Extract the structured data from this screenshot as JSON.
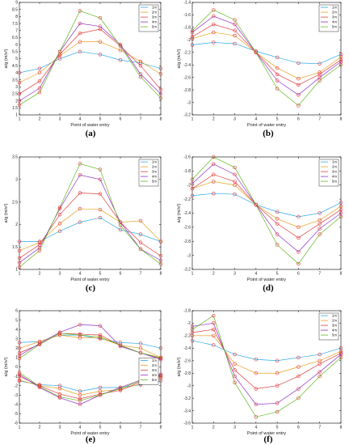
{
  "series_colors": [
    "#2ba8e6",
    "#e6a020",
    "#e04040",
    "#9030c8",
    "#60b820"
  ],
  "chart_data": [
    {
      "label": "(a)",
      "type": "line",
      "xlabel": "Point of water entry",
      "ylabel": "a/g (m/s²)",
      "x": [
        1,
        2,
        3,
        4,
        5,
        6,
        7,
        8
      ],
      "xlim": [
        1,
        8
      ],
      "ylim": [
        1,
        9
      ],
      "yticks": [
        1,
        1.5,
        2,
        2.5,
        3,
        3.5,
        4,
        4.5,
        5,
        5.5,
        6,
        6.5,
        7,
        7.5,
        8,
        8.5,
        9
      ],
      "legend": "top-right",
      "series": [
        {
          "name": "1m",
          "values": [
            4.0,
            4.3,
            5.0,
            5.5,
            5.3,
            4.9,
            4.7,
            4.3
          ]
        },
        {
          "name": "2m",
          "values": [
            3.3,
            4.0,
            5.2,
            6.2,
            6.2,
            5.6,
            4.8,
            3.9
          ]
        },
        {
          "name": "3m",
          "values": [
            2.5,
            3.4,
            5.3,
            6.8,
            7.1,
            5.9,
            4.5,
            2.8
          ]
        },
        {
          "name": "4m",
          "values": [
            2.0,
            2.9,
            5.5,
            7.5,
            7.3,
            6.0,
            3.9,
            2.5
          ]
        },
        {
          "name": "5m",
          "values": [
            1.7,
            2.6,
            5.5,
            8.4,
            7.9,
            5.9,
            3.7,
            2.2
          ]
        }
      ]
    },
    {
      "label": "(b)",
      "type": "line",
      "xlabel": "Point of water entry",
      "ylabel": "a/g (m/s²)",
      "x": [
        1,
        2,
        3,
        4,
        5,
        6,
        7,
        8
      ],
      "xlim": [
        1,
        8
      ],
      "ylim": [
        -3.2,
        -1.4
      ],
      "yticks": [
        -3.2,
        -3,
        -2.8,
        -2.6,
        -2.4,
        -2.2,
        -2,
        -1.8,
        -1.6,
        -1.4
      ],
      "legend": "top-right",
      "series": [
        {
          "name": "1m",
          "values": [
            -2.08,
            -2.04,
            -2.06,
            -2.18,
            -2.28,
            -2.37,
            -2.38,
            -2.23
          ]
        },
        {
          "name": "2m",
          "values": [
            -1.98,
            -1.88,
            -1.93,
            -2.2,
            -2.45,
            -2.62,
            -2.52,
            -2.27
          ]
        },
        {
          "name": "3m",
          "values": [
            -1.95,
            -1.75,
            -1.85,
            -2.2,
            -2.55,
            -2.72,
            -2.55,
            -2.32
          ]
        },
        {
          "name": "4m",
          "values": [
            -1.88,
            -1.62,
            -1.75,
            -2.2,
            -2.65,
            -2.88,
            -2.6,
            -2.35
          ]
        },
        {
          "name": "5m",
          "values": [
            -1.85,
            -1.52,
            -1.68,
            -2.2,
            -2.78,
            -3.05,
            -2.65,
            -2.4
          ]
        }
      ]
    },
    {
      "label": "(c)",
      "type": "line",
      "xlabel": "Point of water entry",
      "ylabel": "a/g (m/s²)",
      "x": [
        1,
        2,
        3,
        4,
        5,
        6,
        7,
        8
      ],
      "xlim": [
        1,
        8
      ],
      "ylim": [
        1,
        3.5
      ],
      "yticks": [
        1,
        1.5,
        2,
        2.5,
        3,
        3.5
      ],
      "legend": "top-right",
      "series": [
        {
          "name": "1m",
          "values": [
            1.62,
            1.62,
            1.85,
            2.05,
            2.15,
            1.88,
            1.78,
            1.62
          ]
        },
        {
          "name": "2m",
          "values": [
            1.42,
            1.6,
            2.02,
            2.35,
            2.33,
            2.05,
            2.08,
            1.62
          ]
        },
        {
          "name": "3m",
          "values": [
            1.25,
            1.55,
            2.22,
            2.7,
            2.68,
            2.05,
            1.6,
            1.3
          ]
        },
        {
          "name": "4m",
          "values": [
            1.15,
            1.48,
            2.35,
            3.1,
            3.0,
            2.05,
            1.45,
            1.2
          ]
        },
        {
          "name": "5m",
          "values": [
            1.05,
            1.42,
            2.38,
            3.35,
            3.22,
            1.98,
            1.45,
            1.12
          ]
        }
      ]
    },
    {
      "label": "(d)",
      "type": "line",
      "xlabel": "Point of water entry",
      "ylabel": "a/g (m/s²)",
      "x": [
        1,
        2,
        3,
        4,
        5,
        6,
        7,
        8
      ],
      "xlim": [
        1,
        8
      ],
      "ylim": [
        -3.2,
        -1.6
      ],
      "yticks": [
        -3.2,
        -3,
        -2.8,
        -2.6,
        -2.4,
        -2.2,
        -2,
        -1.8,
        -1.6
      ],
      "legend": "top-right",
      "series": [
        {
          "name": "1m",
          "values": [
            -2.15,
            -2.12,
            -2.13,
            -2.28,
            -2.38,
            -2.45,
            -2.4,
            -2.25
          ]
        },
        {
          "name": "2m",
          "values": [
            -2.05,
            -1.95,
            -2.0,
            -2.28,
            -2.48,
            -2.6,
            -2.5,
            -2.3
          ]
        },
        {
          "name": "3m",
          "values": [
            -2.05,
            -1.85,
            -1.95,
            -2.28,
            -2.55,
            -2.75,
            -2.55,
            -2.35
          ]
        },
        {
          "name": "4m",
          "values": [
            -1.98,
            -1.7,
            -1.85,
            -2.28,
            -2.7,
            -2.95,
            -2.62,
            -2.4
          ]
        },
        {
          "name": "5m",
          "values": [
            -1.92,
            -1.6,
            -1.75,
            -2.28,
            -2.85,
            -3.12,
            -2.7,
            -2.45
          ]
        }
      ]
    },
    {
      "label": "(e)",
      "type": "line",
      "xlabel": "Point of water entry",
      "ylabel": "a/g (m/s²)",
      "x": [
        1,
        2,
        3,
        4,
        5,
        6,
        7,
        8
      ],
      "xlim": [
        1,
        8
      ],
      "ylim": [
        -6,
        6
      ],
      "yticks": [
        -6,
        -5,
        -4,
        -3,
        -2,
        -1,
        0,
        1,
        2,
        3,
        4,
        5,
        6
      ],
      "legend": "right",
      "series": [
        {
          "name": "1m",
          "values": [
            2.6,
            2.7,
            3.4,
            3.4,
            3.0,
            2.6,
            2.5,
            2.0
          ]
        },
        {
          "name": "2m",
          "values": [
            2.0,
            2.7,
            3.4,
            3.1,
            3.1,
            2.3,
            2.0,
            1.0
          ]
        },
        {
          "name": "3m",
          "values": [
            1.5,
            2.4,
            3.6,
            3.5,
            3.4,
            2.3,
            1.5,
            0.9
          ]
        },
        {
          "name": "4m",
          "values": [
            1.2,
            2.5,
            3.7,
            4.5,
            4.4,
            2.2,
            1.5,
            0.8
          ]
        },
        {
          "name": "5m",
          "values": [
            0.9,
            2.4,
            3.6,
            3.4,
            3.2,
            2.3,
            1.5,
            1.0
          ]
        },
        {
          "name": "1m",
          "values": [
            -1.5,
            -1.9,
            -2.0,
            -2.6,
            -2.2,
            -2.2,
            -1.9,
            -1.5
          ]
        },
        {
          "name": "2m",
          "values": [
            -1.4,
            -2.0,
            -2.3,
            -3.0,
            -2.6,
            -2.4,
            -1.8,
            -1.2
          ]
        },
        {
          "name": "3m",
          "values": [
            -1.0,
            -2.0,
            -2.9,
            -3.4,
            -2.9,
            -2.5,
            -1.6,
            -1.0
          ]
        },
        {
          "name": "4m",
          "values": [
            -0.8,
            -2.2,
            -3.3,
            -4.0,
            -3.0,
            -2.2,
            -1.4,
            -0.8
          ]
        },
        {
          "name": "5m",
          "values": [
            -0.6,
            -2.1,
            -3.2,
            -3.6,
            -3.0,
            -2.3,
            -1.5,
            -0.9
          ]
        }
      ]
    },
    {
      "label": "(f)",
      "type": "line",
      "xlabel": "Point of water entry",
      "ylabel": "a/g (m/s²)",
      "x": [
        1,
        2,
        3,
        4,
        5,
        6,
        7,
        8
      ],
      "xlim": [
        1,
        8
      ],
      "ylim": [
        -3.6,
        -1.8
      ],
      "yticks": [
        -3.6,
        -3.4,
        -3.2,
        -3,
        -2.8,
        -2.6,
        -2.4,
        -2.2,
        -2,
        -1.8
      ],
      "legend": "top-right",
      "series": [
        {
          "name": "1m",
          "values": [
            -2.28,
            -2.35,
            -2.5,
            -2.58,
            -2.6,
            -2.55,
            -2.5,
            -2.4
          ]
        },
        {
          "name": "2m",
          "values": [
            -2.2,
            -2.2,
            -2.65,
            -2.8,
            -2.8,
            -2.7,
            -2.6,
            -2.45
          ]
        },
        {
          "name": "3m",
          "values": [
            -2.15,
            -2.1,
            -2.75,
            -3.05,
            -3.0,
            -2.85,
            -2.65,
            -2.48
          ]
        },
        {
          "name": "4m",
          "values": [
            -2.05,
            -2.0,
            -2.85,
            -3.3,
            -3.28,
            -3.05,
            -2.78,
            -2.5
          ]
        },
        {
          "name": "5m",
          "values": [
            -2.1,
            -1.88,
            -2.95,
            -3.5,
            -3.42,
            -3.2,
            -2.85,
            -2.55
          ]
        }
      ]
    }
  ]
}
